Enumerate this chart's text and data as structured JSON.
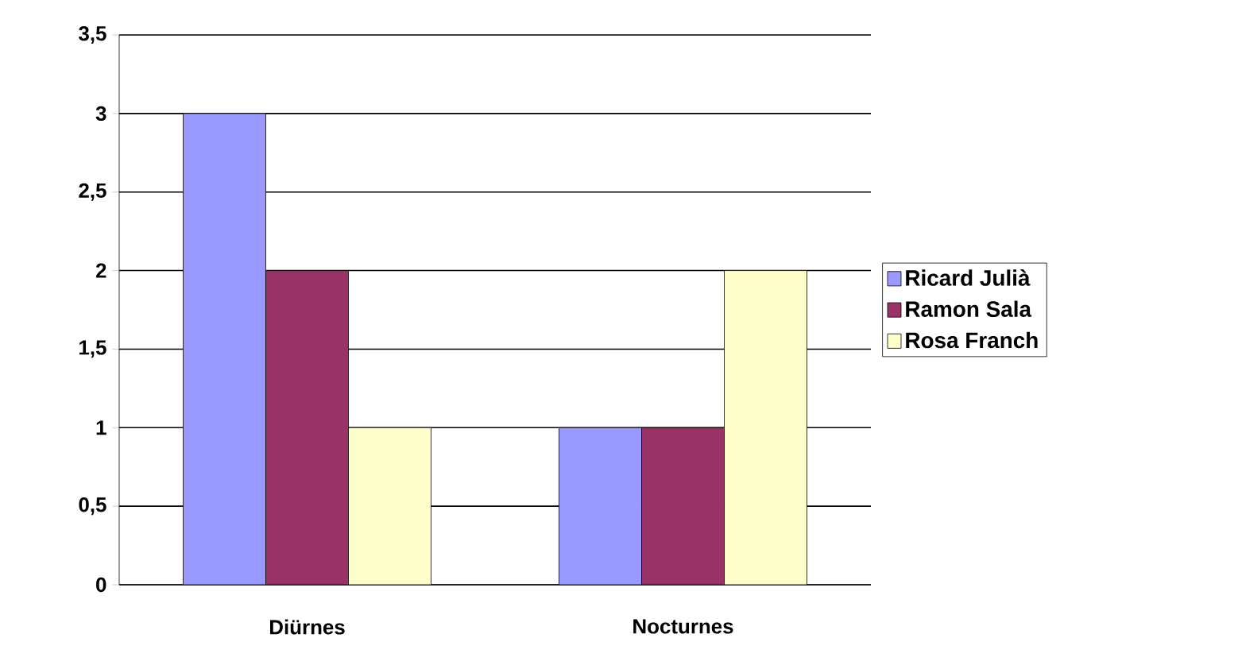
{
  "chart_data": {
    "type": "bar",
    "categories": [
      "Diürnes",
      "Nocturnes"
    ],
    "series": [
      {
        "name": "Ricard Julià",
        "color": "#9999ff",
        "values": [
          3,
          1
        ]
      },
      {
        "name": "Ramon Sala",
        "color": "#993366",
        "values": [
          2,
          1
        ]
      },
      {
        "name": "Rosa Franch",
        "color": "#ffffcc",
        "values": [
          1,
          2
        ]
      }
    ],
    "ylim": [
      0,
      3.5
    ],
    "yticks": [
      0,
      {
        "value": 0.5,
        "label": "0,5"
      },
      1,
      {
        "value": 1.5,
        "label": "1,5"
      },
      2,
      {
        "value": 2.5,
        "label": "2,5"
      },
      3,
      {
        "value": 3.5,
        "label": "3,5"
      }
    ],
    "grid": "y",
    "legend": "right"
  }
}
